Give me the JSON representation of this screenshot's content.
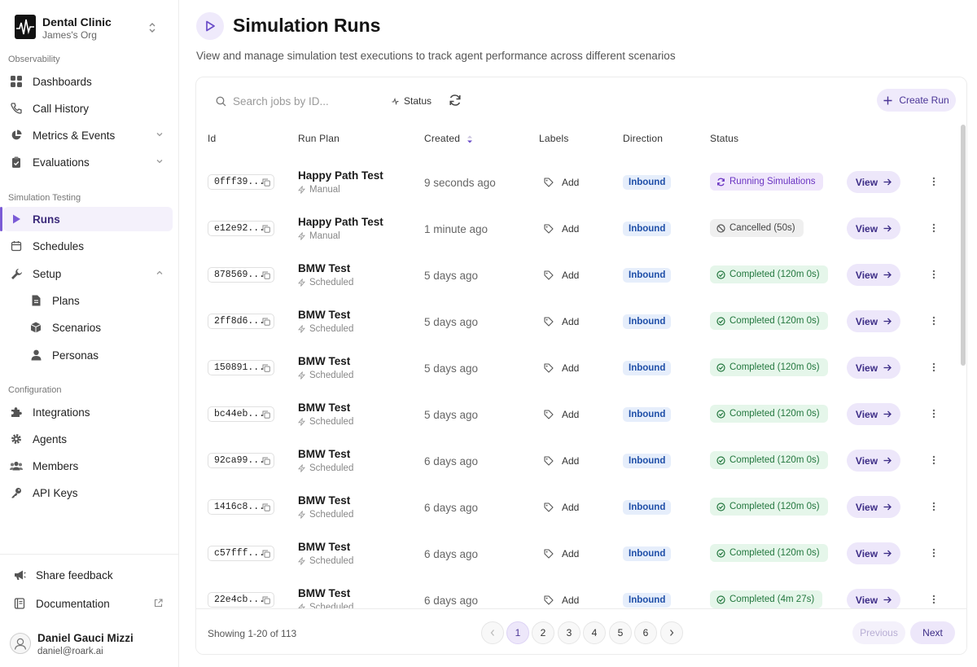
{
  "org": {
    "name": "Dental Clinic",
    "subtitle": "James's Org",
    "logo": "waveform-logo-icon",
    "switcher": "chevrons-up-down-icon"
  },
  "sidebar": {
    "sections": {
      "observability": "Observability",
      "simulation": "Simulation Testing",
      "configuration": "Configuration"
    },
    "items": {
      "dashboards": {
        "label": "Dashboards",
        "icon": "grid-icon"
      },
      "call_history": {
        "label": "Call History",
        "icon": "phone-icon"
      },
      "metrics": {
        "label": "Metrics & Events",
        "icon": "pie-chart-icon"
      },
      "evaluations": {
        "label": "Evaluations",
        "icon": "clipboard-check-icon"
      },
      "runs": {
        "label": "Runs",
        "icon": "play-icon",
        "active": true
      },
      "schedules": {
        "label": "Schedules",
        "icon": "calendar-icon"
      },
      "setup": {
        "label": "Setup",
        "icon": "wrench-icon",
        "expanded": true
      },
      "plans": {
        "label": "Plans",
        "icon": "file-icon"
      },
      "scenarios": {
        "label": "Scenarios",
        "icon": "box-icon"
      },
      "personas": {
        "label": "Personas",
        "icon": "user-icon"
      },
      "integrations": {
        "label": "Integrations",
        "icon": "puzzle-icon"
      },
      "agents": {
        "label": "Agents",
        "icon": "gear-icon"
      },
      "members": {
        "label": "Members",
        "icon": "users-icon"
      },
      "api_keys": {
        "label": "API Keys",
        "icon": "key-icon"
      }
    },
    "footer": {
      "feedback": "Share feedback",
      "docs": "Documentation"
    },
    "user": {
      "name": "Daniel Gauci Mizzi",
      "email": "daniel@roark.ai"
    }
  },
  "page": {
    "title": "Simulation Runs",
    "subtitle": "View and manage simulation test executions to track agent performance across different scenarios"
  },
  "toolbar": {
    "search_placeholder": "Search jobs by ID...",
    "status_filter": "Status",
    "create_label": "Create Run"
  },
  "table": {
    "columns": [
      "Id",
      "Run Plan",
      "Created",
      "Labels",
      "Direction",
      "Status"
    ],
    "rows": [
      {
        "id": "0fff39...",
        "plan": "Happy Path Test",
        "trigger": "Manual",
        "created": "9 seconds ago",
        "label": "Add",
        "direction": "Inbound",
        "status": "Running Simulations",
        "status_kind": "running",
        "action": "View"
      },
      {
        "id": "e12e92...",
        "plan": "Happy Path Test",
        "trigger": "Manual",
        "created": "1 minute ago",
        "label": "Add",
        "direction": "Inbound",
        "status": "Cancelled (50s)",
        "status_kind": "cancelled",
        "action": "View"
      },
      {
        "id": "878569...",
        "plan": "BMW Test",
        "trigger": "Scheduled",
        "created": "5 days ago",
        "label": "Add",
        "direction": "Inbound",
        "status": "Completed (120m 0s)",
        "status_kind": "completed",
        "action": "View"
      },
      {
        "id": "2ff8d6...",
        "plan": "BMW Test",
        "trigger": "Scheduled",
        "created": "5 days ago",
        "label": "Add",
        "direction": "Inbound",
        "status": "Completed (120m 0s)",
        "status_kind": "completed",
        "action": "View"
      },
      {
        "id": "150891...",
        "plan": "BMW Test",
        "trigger": "Scheduled",
        "created": "5 days ago",
        "label": "Add",
        "direction": "Inbound",
        "status": "Completed (120m 0s)",
        "status_kind": "completed",
        "action": "View"
      },
      {
        "id": "bc44eb...",
        "plan": "BMW Test",
        "trigger": "Scheduled",
        "created": "5 days ago",
        "label": "Add",
        "direction": "Inbound",
        "status": "Completed (120m 0s)",
        "status_kind": "completed",
        "action": "View"
      },
      {
        "id": "92ca99...",
        "plan": "BMW Test",
        "trigger": "Scheduled",
        "created": "6 days ago",
        "label": "Add",
        "direction": "Inbound",
        "status": "Completed (120m 0s)",
        "status_kind": "completed",
        "action": "View"
      },
      {
        "id": "1416c8...",
        "plan": "BMW Test",
        "trigger": "Scheduled",
        "created": "6 days ago",
        "label": "Add",
        "direction": "Inbound",
        "status": "Completed (120m 0s)",
        "status_kind": "completed",
        "action": "View"
      },
      {
        "id": "c57fff...",
        "plan": "BMW Test",
        "trigger": "Scheduled",
        "created": "6 days ago",
        "label": "Add",
        "direction": "Inbound",
        "status": "Completed (120m 0s)",
        "status_kind": "completed",
        "action": "View"
      },
      {
        "id": "22e4cb...",
        "plan": "BMW Test",
        "trigger": "Scheduled",
        "created": "6 days ago",
        "label": "Add",
        "direction": "Inbound",
        "status": "Completed (4m 27s)",
        "status_kind": "completed",
        "action": "View"
      }
    ]
  },
  "pagination": {
    "showing": "Showing 1-20 of 113",
    "pages": [
      "1",
      "2",
      "3",
      "4",
      "5",
      "6"
    ],
    "current": "1",
    "previous": "Previous",
    "next": "Next"
  },
  "colors": {
    "accent": "#7b5bd6",
    "accent_bg": "#ede7fa",
    "inbound": "#1f4fa8",
    "completed": "#23773e",
    "running": "#6a34c2"
  }
}
